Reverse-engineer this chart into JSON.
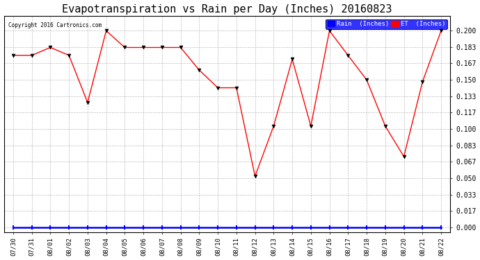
{
  "title": "Evapotranspiration vs Rain per Day (Inches) 20160823",
  "copyright": "Copyright 2016 Cartronics.com",
  "x_labels": [
    "07/30",
    "07/31",
    "08/01",
    "08/02",
    "08/03",
    "08/04",
    "08/05",
    "08/06",
    "08/07",
    "08/08",
    "08/09",
    "08/10",
    "08/11",
    "08/12",
    "08/13",
    "08/14",
    "08/15",
    "08/16",
    "08/17",
    "08/18",
    "08/19",
    "08/20",
    "08/21",
    "08/22"
  ],
  "et_values": [
    0.175,
    0.175,
    0.183,
    0.175,
    0.127,
    0.2,
    0.183,
    0.183,
    0.183,
    0.183,
    0.16,
    0.142,
    0.142,
    0.052,
    0.103,
    0.171,
    0.103,
    0.2,
    0.175,
    0.15,
    0.103,
    0.072,
    0.148,
    0.2
  ],
  "rain_values": [
    0.0,
    0.0,
    0.0,
    0.0,
    0.0,
    0.0,
    0.0,
    0.0,
    0.0,
    0.0,
    0.0,
    0.0,
    0.0,
    0.0,
    0.0,
    0.0,
    0.0,
    0.0,
    0.0,
    0.0,
    0.0,
    0.0,
    0.0,
    0.0
  ],
  "et_color": "red",
  "rain_color": "blue",
  "bg_color": "white",
  "title_fontsize": 11,
  "yticks": [
    0.0,
    0.017,
    0.033,
    0.05,
    0.067,
    0.083,
    0.1,
    0.117,
    0.133,
    0.15,
    0.167,
    0.183,
    0.2
  ],
  "ylim": [
    -0.005,
    0.215
  ],
  "xlim_left": -0.5,
  "fig_width": 6.9,
  "fig_height": 3.75
}
